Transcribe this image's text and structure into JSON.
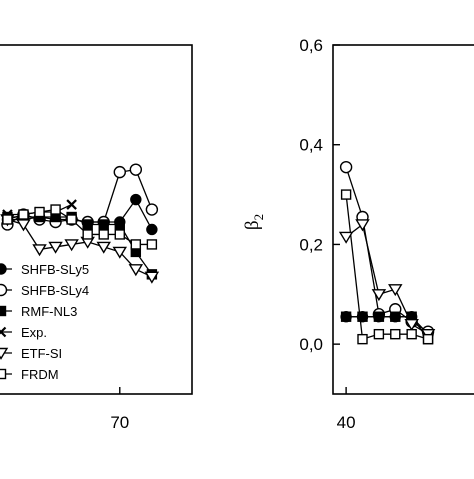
{
  "chart_data": [
    {
      "type": "line",
      "panel": "left",
      "xlabel": "",
      "ylabel": "",
      "xlim": [
        54.7,
        79
      ],
      "ylim": [
        -0.1,
        0.6
      ],
      "xticks": [
        70
      ],
      "x": [
        56,
        58,
        60,
        62,
        64,
        66,
        68,
        70,
        72,
        74
      ],
      "series": [
        {
          "name": "SHFB-SLy5",
          "marker": "filled-circle",
          "values": [
            0.25,
            0.25,
            0.255,
            0.25,
            0.25,
            0.245,
            0.245,
            0.245,
            0.29,
            0.23
          ]
        },
        {
          "name": "SHFB-SLy4",
          "marker": "open-circle",
          "values": [
            0.24,
            0.26,
            0.25,
            0.245,
            0.25,
            0.245,
            0.245,
            0.345,
            0.35,
            0.27
          ]
        },
        {
          "name": "RMF-NL3",
          "marker": "filled-square",
          "values": [
            0.255,
            0.255,
            0.255,
            0.255,
            0.255,
            0.24,
            0.24,
            0.24,
            0.185,
            0.14
          ]
        },
        {
          "name": "Exp.",
          "marker": "cross",
          "values": [
            0.26,
            0.26,
            0.265,
            0.265,
            0.28,
            null,
            null,
            null,
            null,
            null
          ]
        },
        {
          "name": "ETF-SI",
          "marker": "open-triangle-down",
          "values": [
            0.25,
            0.24,
            0.19,
            0.195,
            0.2,
            0.205,
            0.195,
            0.185,
            0.15,
            0.135
          ]
        },
        {
          "name": "FRDM",
          "marker": "open-square",
          "values": [
            0.25,
            0.26,
            0.265,
            0.27,
            0.25,
            0.22,
            0.22,
            0.22,
            0.2,
            0.2
          ]
        }
      ]
    },
    {
      "type": "line",
      "panel": "right",
      "xlabel": "",
      "ylabel": "β",
      "ylabel_sub": "2",
      "xlim": [
        38.4,
        60
      ],
      "ylim": [
        -0.1,
        0.6
      ],
      "yticks": [
        0.0,
        0.2,
        0.4,
        0.6
      ],
      "ytick_labels": [
        "0,0",
        "0,2",
        "0,4",
        "0,6"
      ],
      "xticks": [
        40
      ],
      "x": [
        40,
        42,
        44,
        46,
        48,
        50
      ],
      "series": [
        {
          "name": "SHFB-SLy5",
          "marker": "filled-circle",
          "values": [
            0.055,
            0.055,
            0.055,
            0.055,
            0.055,
            0.02
          ]
        },
        {
          "name": "SHFB-SLy4",
          "marker": "open-circle",
          "values": [
            0.355,
            0.255,
            0.06,
            0.07,
            0.045,
            0.025
          ]
        },
        {
          "name": "RMF-NL3",
          "marker": "filled-square",
          "values": [
            0.055,
            0.055,
            0.055,
            0.055,
            0.055,
            0.01
          ]
        },
        {
          "name": "ETF-SI",
          "marker": "open-triangle-down",
          "values": [
            0.215,
            0.24,
            0.1,
            0.11,
            0.04,
            0.02
          ]
        },
        {
          "name": "FRDM",
          "marker": "open-square",
          "values": [
            0.3,
            0.01,
            0.02,
            0.02,
            0.02,
            0.01
          ]
        }
      ]
    }
  ],
  "legend": {
    "placement": "lower-left of left panel",
    "entries": [
      {
        "label": "SHFB-SLy5",
        "marker": "filled-circle"
      },
      {
        "label": "SHFB-SLy4",
        "marker": "open-circle"
      },
      {
        "label": "RMF-NL3",
        "marker": "filled-square"
      },
      {
        "label": "Exp.",
        "marker": "cross"
      },
      {
        "label": "ETF-SI",
        "marker": "open-triangle-down"
      },
      {
        "label": "FRDM",
        "marker": "open-square"
      }
    ]
  },
  "labels": {
    "left_xtick_70": "70",
    "right_xtick_40": "40",
    "right_ylabel": "β",
    "right_ylabel_sub": "2"
  }
}
